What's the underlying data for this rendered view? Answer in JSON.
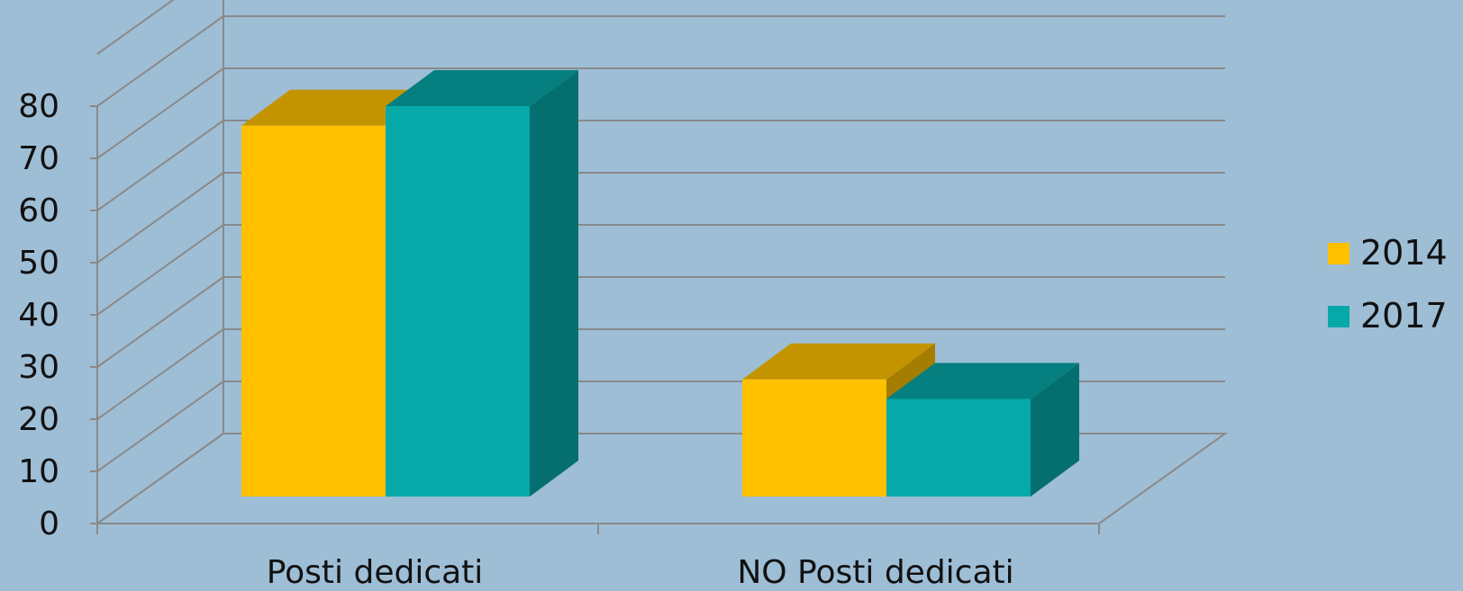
{
  "chart_data": {
    "type": "bar",
    "categories": [
      "Posti dedicati",
      "NO Posti dedicati"
    ],
    "series": [
      {
        "name": "2014",
        "values": [
          76,
          24
        ],
        "color": "#ffc000",
        "top_color": "#c49400",
        "side_color": "#a57d00"
      },
      {
        "name": "2017",
        "values": [
          80,
          20
        ],
        "color": "#06a8a8",
        "top_color": "#057f7f",
        "side_color": "#056f6f"
      }
    ],
    "yticks": [
      "0",
      "10",
      "20",
      "30",
      "40",
      "50",
      "60",
      "70",
      "80"
    ],
    "ylim": [
      0,
      80
    ],
    "grid": true,
    "legend_position": "right",
    "three_d": true,
    "gridline_color": "#8a8a8a"
  }
}
